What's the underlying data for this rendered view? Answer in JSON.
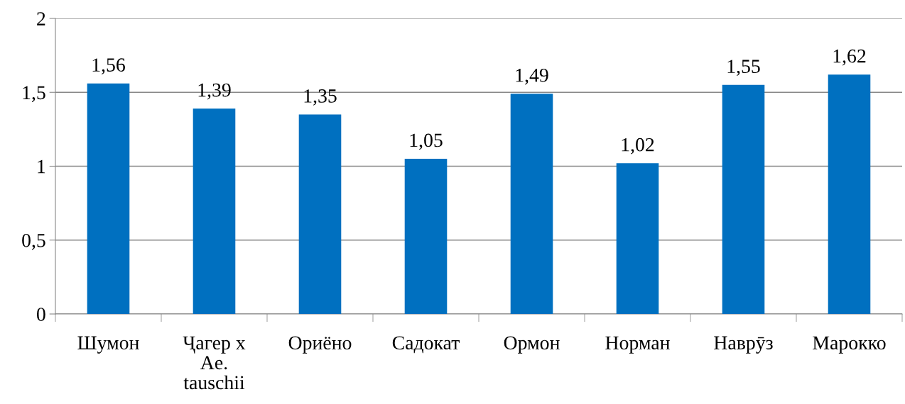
{
  "chart_data": {
    "type": "bar",
    "categories": [
      "Шумон",
      "Ҷагер x\nAe.\ntauschii",
      "Ориёно",
      "Садокат",
      "Ормон",
      "Норман",
      "Наврӯз",
      "Марокко"
    ],
    "values": [
      1.56,
      1.39,
      1.35,
      1.05,
      1.49,
      1.02,
      1.55,
      1.62
    ],
    "value_labels": [
      "1,56",
      "1,39",
      "1,35",
      "1,05",
      "1,49",
      "1,02",
      "1,55",
      "1,62"
    ],
    "color": "#0070c0",
    "ylim": [
      0,
      2
    ],
    "yticks": [
      {
        "value": 0,
        "label": "0"
      },
      {
        "value": 0.5,
        "label": "0,5"
      },
      {
        "value": 1,
        "label": "1"
      },
      {
        "value": 1.5,
        "label": "1,5"
      },
      {
        "value": 2,
        "label": "2"
      }
    ],
    "grid": "y",
    "legend": false
  }
}
